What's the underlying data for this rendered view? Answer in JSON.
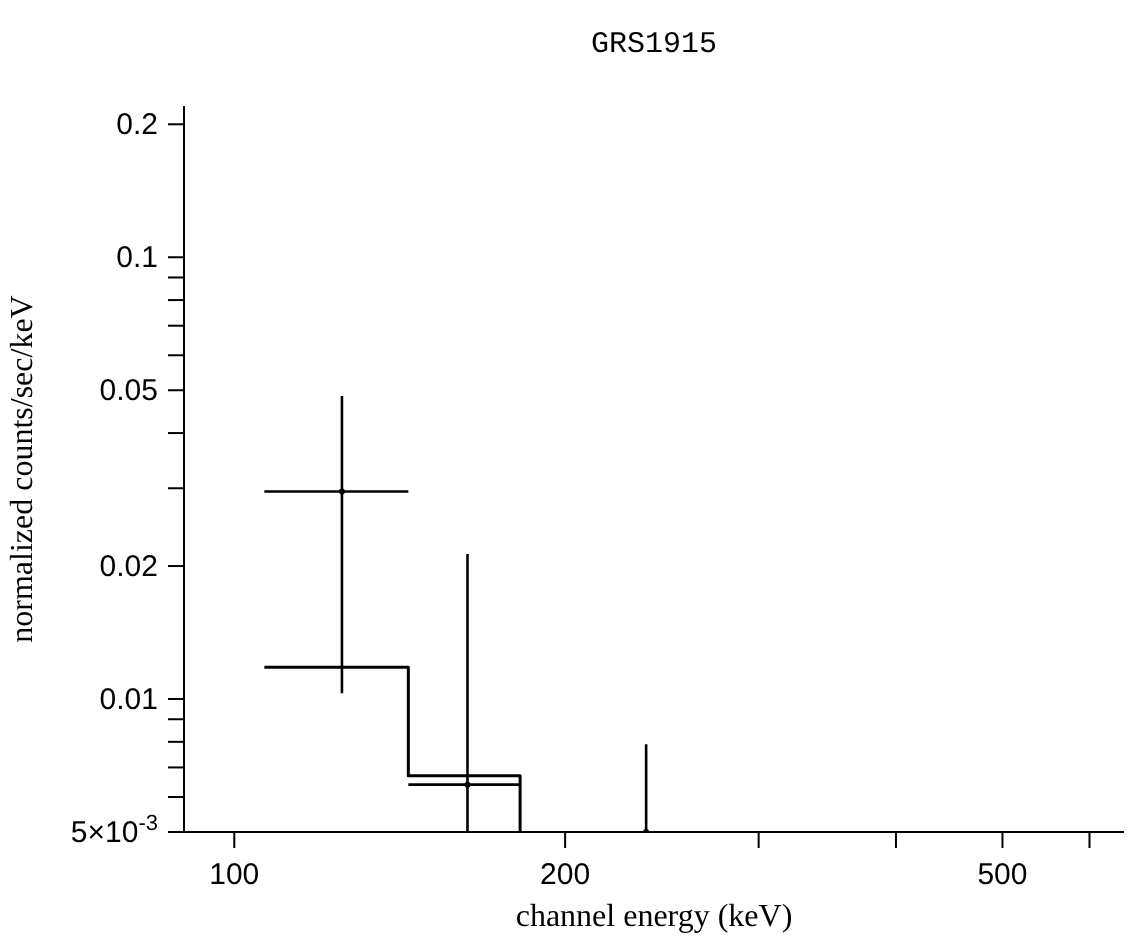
{
  "chart_data": {
    "type": "scatter",
    "title": "GRS1915",
    "xlabel": "channel energy (keV)",
    "ylabel": "normalized counts/sec/keV",
    "log": "xy",
    "grid": false,
    "legend": false,
    "xlim": [
      90,
      645
    ],
    "xticks": [
      100,
      200,
      500,
      {
        "value": 300,
        "label": null
      },
      {
        "value": 400,
        "label": null
      },
      {
        "value": 600,
        "label": null
      }
    ],
    "ylim": [
      0.005,
      0.22
    ],
    "yticks": [
      {
        "value": 0.005,
        "label": "5×10$^{-3}$"
      },
      0.01,
      0.02,
      0.05,
      0.1,
      0.2,
      {
        "value": 0.006,
        "label": null
      },
      {
        "value": 0.007,
        "label": null
      },
      {
        "value": 0.008,
        "label": null
      },
      {
        "value": 0.009,
        "label": null
      },
      {
        "value": 0.03,
        "label": null
      },
      {
        "value": 0.04,
        "label": null
      },
      {
        "value": 0.06,
        "label": null
      },
      {
        "value": 0.07,
        "label": null
      },
      {
        "value": 0.08,
        "label": null
      },
      {
        "value": 0.09,
        "label": null
      }
    ],
    "series": [
      {
        "color": "#000000",
        "x": [
          125.3,
          163,
          237
        ],
        "values": [
          0.0295,
          0.0064,
          0.005
        ],
        "errors": [
          [
            0.0103,
            0.0485
          ],
          [
            0.005,
            0.0213
          ],
          [
            0.005,
            0.0079
          ]
        ],
        "xerrors": [
          [
            106.5,
            144
          ],
          [
            144,
            182
          ],
          null
        ]
      },
      {
        "type": "step",
        "color": "#000000",
        "x": [
          106.5,
          144,
          182
        ],
        "values": [
          0.0118,
          0.0067,
          0.005
        ]
      }
    ]
  }
}
